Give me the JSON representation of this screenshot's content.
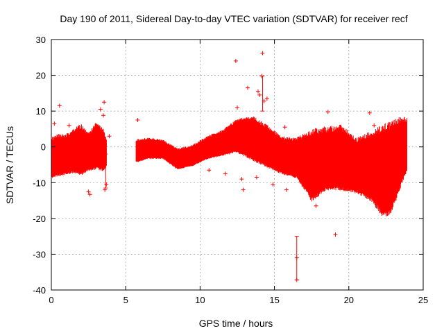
{
  "chart_data": {
    "type": "scatter",
    "title": "Day 190 of 2011, Sidereal Day-to-day VTEC variation (SDTVAR) for receiver recf",
    "xlabel": "GPS time / hours",
    "ylabel": "SDTVAR / TECUs",
    "xlim": [
      0,
      25
    ],
    "ylim": [
      -40,
      30
    ],
    "x_ticks": [
      0,
      5,
      10,
      15,
      20,
      25
    ],
    "x_tick_labels": [
      "0",
      "5",
      "10",
      "15",
      "20",
      "25"
    ],
    "y_ticks": [
      -40,
      -30,
      -20,
      -10,
      0,
      10,
      20,
      30
    ],
    "y_tick_labels": [
      "-40",
      "-30",
      "-20",
      "-10",
      "0",
      "10",
      "20",
      "30"
    ],
    "grid": true,
    "series": [
      {
        "name": "SDTVAR",
        "color": "#ff0000",
        "marker": "plus",
        "bands": [
          {
            "x": [
              0.0,
              0.5,
              1.0,
              1.5,
              2.0,
              2.5,
              3.0,
              3.5,
              3.7
            ],
            "upper": [
              1.5,
              2.5,
              2.5,
              4.0,
              5.0,
              3.0,
              5.5,
              4.0,
              1.5
            ],
            "lower": [
              -8.0,
              -7.5,
              -7.0,
              -6.5,
              -7.0,
              -6.0,
              -5.5,
              -6.0,
              -5.0
            ]
          },
          {
            "x": [
              5.7,
              6.5,
              7.5,
              8.5,
              9.5,
              10.5,
              11.5,
              12.5,
              13.5,
              14.5,
              15.5,
              16.5,
              17.5,
              18.5,
              19.5,
              20.5,
              21.5,
              22.3,
              22.8,
              23.5,
              23.9
            ],
            "upper": [
              1.5,
              2.0,
              1.5,
              -1.0,
              0.0,
              2.5,
              4.0,
              7.0,
              7.5,
              5.0,
              2.0,
              1.5,
              3.0,
              4.0,
              4.5,
              1.0,
              2.5,
              4.0,
              5.0,
              6.5,
              7.0
            ],
            "lower": [
              -4.0,
              -3.0,
              -3.0,
              -6.0,
              -5.0,
              -3.0,
              -2.0,
              -1.0,
              -3.0,
              -5.0,
              -7.0,
              -8.0,
              -14.0,
              -11.0,
              -11.0,
              -12.0,
              -14.0,
              -18.0,
              -17.5,
              -10.0,
              -6.0
            ]
          }
        ],
        "outliers": [
          {
            "x": 0.2,
            "y": 6.5
          },
          {
            "x": 0.55,
            "y": 11.5
          },
          {
            "x": 1.2,
            "y": 6.0
          },
          {
            "x": 2.5,
            "y": -12.5
          },
          {
            "x": 2.6,
            "y": -13.3
          },
          {
            "x": 3.3,
            "y": 10.5
          },
          {
            "x": 3.55,
            "y": 12.5
          },
          {
            "x": 3.5,
            "y": 8.8
          },
          {
            "x": 3.6,
            "y": -12.0
          },
          {
            "x": 3.7,
            "y": -10.5
          },
          {
            "x": 3.9,
            "y": 3.0
          },
          {
            "x": 5.8,
            "y": 7.5
          },
          {
            "x": 10.6,
            "y": -6.5
          },
          {
            "x": 11.7,
            "y": -7.5
          },
          {
            "x": 12.4,
            "y": 24.0
          },
          {
            "x": 12.5,
            "y": 11.0
          },
          {
            "x": 12.8,
            "y": -9.0
          },
          {
            "x": 12.9,
            "y": -12.0
          },
          {
            "x": 13.2,
            "y": 16.5
          },
          {
            "x": 13.8,
            "y": -8.5
          },
          {
            "x": 13.9,
            "y": 15.5
          },
          {
            "x": 14.2,
            "y": 26.2
          },
          {
            "x": 14.15,
            "y": 19.8
          },
          {
            "x": 14.0,
            "y": 14.5
          },
          {
            "x": 14.3,
            "y": 12.8
          },
          {
            "x": 14.5,
            "y": 13.5
          },
          {
            "x": 14.9,
            "y": -10.5
          },
          {
            "x": 15.7,
            "y": 5.5
          },
          {
            "x": 15.8,
            "y": -12.0
          },
          {
            "x": 16.5,
            "y": -37.2
          },
          {
            "x": 16.5,
            "y": -31.0
          },
          {
            "x": 17.8,
            "y": -16.5
          },
          {
            "x": 18.6,
            "y": 9.8
          },
          {
            "x": 19.1,
            "y": -24.5
          },
          {
            "x": 20.2,
            "y": -10.5
          },
          {
            "x": 21.4,
            "y": 9.5
          },
          {
            "x": 21.5,
            "y": -13.0
          },
          {
            "x": 21.7,
            "y": 6.0
          },
          {
            "x": 23.2,
            "y": -5.0
          }
        ],
        "error_bars": [
          {
            "x": 3.65,
            "y_low": -11.5,
            "y_high": -2.0
          },
          {
            "x": 16.5,
            "y_low": -37.2,
            "y_high": -25.0
          },
          {
            "x": 14.2,
            "y_low": 10.0,
            "y_high": 19.8
          }
        ]
      }
    ]
  }
}
